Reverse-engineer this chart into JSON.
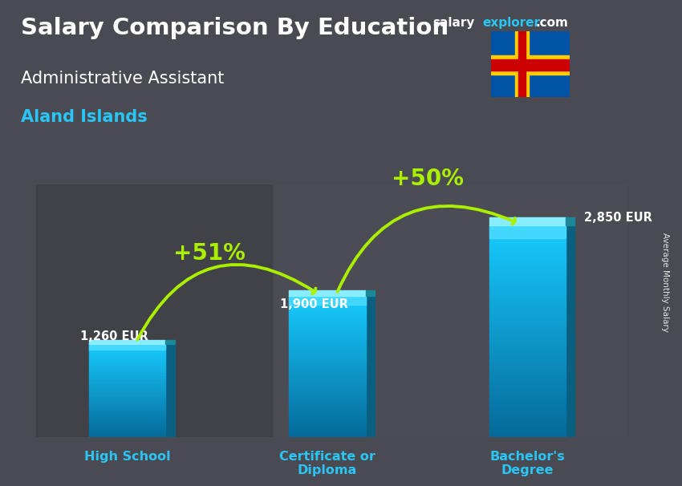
{
  "title_main": "Salary Comparison By Education",
  "subtitle_job": "Administrative Assistant",
  "subtitle_location": "Aland Islands",
  "ylabel": "Average Monthly Salary",
  "categories": [
    "High School",
    "Certificate or\nDiploma",
    "Bachelor's\nDegree"
  ],
  "values": [
    1260,
    1900,
    2850
  ],
  "value_labels": [
    "1,260 EUR",
    "1,900 EUR",
    "2,850 EUR"
  ],
  "pct_labels": [
    "+51%",
    "+50%"
  ],
  "bg_color": "#4a4a52",
  "bar_face_color_top": "#29c5f6",
  "bar_face_color_bot": "#0d7fad",
  "bar_side_color": "#0a5e80",
  "bar_top_color": "#7ae0ff",
  "text_color_white": "#ffffff",
  "text_color_cyan": "#29c5f6",
  "text_color_green": "#aaee00",
  "brand_salary_color": "#ffffff",
  "brand_explorer_color": "#29c5f6",
  "brand_com_color": "#ffffff",
  "ylim_max": 3400,
  "bar_width": 0.42,
  "bar_spacing": 1.0
}
